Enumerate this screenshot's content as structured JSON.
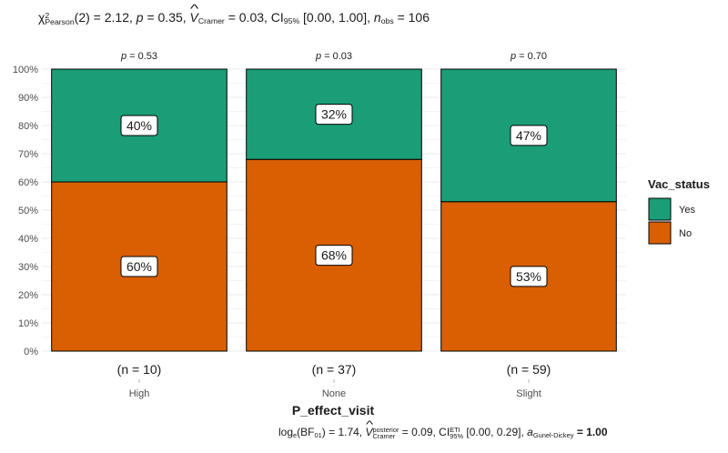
{
  "subtitle": {
    "chi": "χ",
    "chi_sup": "2",
    "chi_sub": "Pearson",
    "df_value": "(2) = 2.12,",
    "p_letter": "p",
    "p_value": "= 0.35,",
    "v_letter": "V",
    "v_sub": "Cramer",
    "v_value": "= 0.03,",
    "ci_label": "CI",
    "ci_sub": "95%",
    "ci_value": "[0.00, 1.00],",
    "n_letter": "n",
    "n_sub": "obs",
    "n_value": "= 106"
  },
  "caption": {
    "log": "log",
    "log_sub": "e",
    "bf": "(BF",
    "bf_sub": "01",
    "bf_value": ") = 1.74,",
    "v_letter": "V",
    "v_sup": "posterior",
    "v_sub": "Cramer",
    "v_value": "= 0.09,",
    "ci_label": "CI",
    "ci_sup": "ETI",
    "ci_sub": "95%",
    "ci_value": "[0.00, 0.29],",
    "a_letter": "a",
    "a_sub": "Gunel-Dickey",
    "a_value": "= 1.00"
  },
  "colors": {
    "yes": "#1b9e77",
    "no": "#d95f02"
  },
  "chart_data": {
    "type": "bar",
    "stacked": true,
    "xlabel": "P_effect_visit",
    "ylabel": "",
    "ylim": [
      0,
      100
    ],
    "y_ticks": [
      "0%",
      "10%",
      "20%",
      "30%",
      "40%",
      "50%",
      "60%",
      "70%",
      "80%",
      "90%",
      "100%"
    ],
    "categories": [
      "High",
      "None",
      "Slight"
    ],
    "counts": [
      "(n = 10)",
      "(n = 37)",
      "(n = 59)"
    ],
    "p_labels": [
      "p = 0.53",
      "p = 0.03",
      "p = 0.70"
    ],
    "series": [
      {
        "name": "No",
        "values": [
          60,
          68,
          53
        ],
        "labels": [
          "60%",
          "68%",
          "53%"
        ]
      },
      {
        "name": "Yes",
        "values": [
          40,
          32,
          47
        ],
        "labels": [
          "40%",
          "32%",
          "47%"
        ]
      }
    ],
    "legend": {
      "title": "Vac_status",
      "entries": [
        "Yes",
        "No"
      ],
      "position": "right"
    },
    "grid": true
  }
}
